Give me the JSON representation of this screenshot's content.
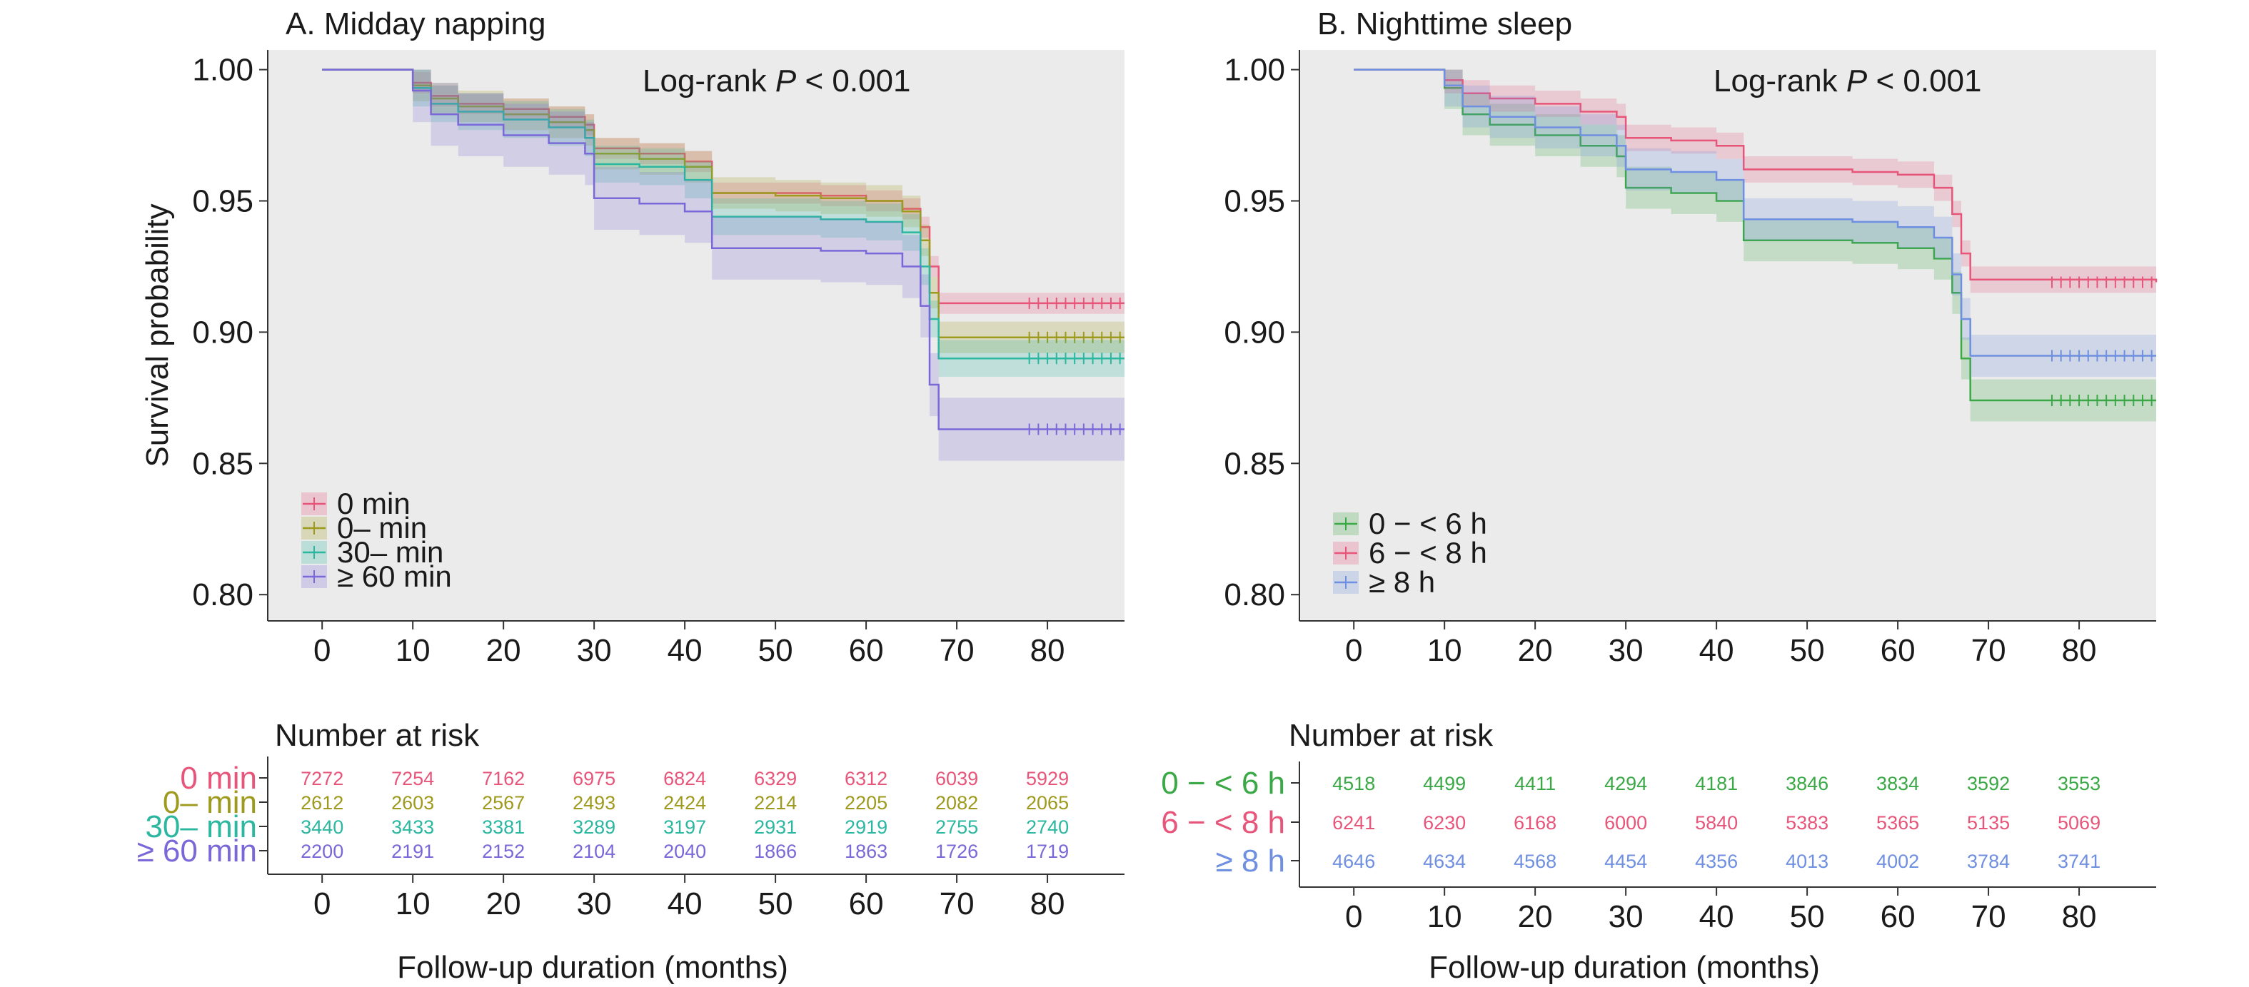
{
  "chart_data": [
    {
      "type": "line",
      "subtype": "kaplan-meier",
      "title": "A. Midday napping",
      "annotation": {
        "prefix": "Log-rank ",
        "italic": "P",
        "suffix": " < 0.001"
      },
      "ylabel": "Survival probability",
      "xlabel": "Follow-up duration (months)",
      "xlim": [
        -6,
        88.5
      ],
      "ylim": [
        0.79,
        1.0075
      ],
      "x_ticks": [
        0,
        10,
        20,
        30,
        40,
        50,
        60,
        70,
        80
      ],
      "y_ticks": [
        0.8,
        0.85,
        0.9,
        0.95,
        1.0
      ],
      "y_tick_labels": [
        "0.80",
        "0.85",
        "0.90",
        "0.95",
        "1.00"
      ],
      "x_tick_labels": [
        "0",
        "10",
        "20",
        "30",
        "40",
        "50",
        "60",
        "70",
        "80"
      ],
      "grid": false,
      "legend_position": "bottom-left",
      "risk_table_heading": "Number at risk",
      "series": [
        {
          "name": "0 min",
          "color": "#e8557a",
          "ci": 0.004,
          "points": [
            [
              0,
              1.0
            ],
            [
              6,
              1.0
            ],
            [
              10,
              0.995
            ],
            [
              12,
              0.99
            ],
            [
              15,
              0.987
            ],
            [
              20,
              0.985
            ],
            [
              25,
              0.982
            ],
            [
              29,
              0.979
            ],
            [
              30,
              0.97
            ],
            [
              35,
              0.968
            ],
            [
              40,
              0.965
            ],
            [
              43,
              0.953
            ],
            [
              50,
              0.953
            ],
            [
              55,
              0.952
            ],
            [
              60,
              0.95
            ],
            [
              64,
              0.947
            ],
            [
              66,
              0.94
            ],
            [
              67,
              0.925
            ],
            [
              68,
              0.911
            ],
            [
              88.5,
              0.911
            ]
          ],
          "censor": [
            78,
            79,
            80,
            81,
            82,
            83,
            84,
            85,
            86,
            87,
            88
          ]
        },
        {
          "name": "0– min",
          "color": "#9e9a1e",
          "ci": 0.006,
          "points": [
            [
              0,
              1.0
            ],
            [
              6,
              1.0
            ],
            [
              10,
              0.994
            ],
            [
              12,
              0.989
            ],
            [
              15,
              0.986
            ],
            [
              20,
              0.983
            ],
            [
              25,
              0.98
            ],
            [
              29,
              0.977
            ],
            [
              30,
              0.968
            ],
            [
              35,
              0.966
            ],
            [
              40,
              0.963
            ],
            [
              43,
              0.953
            ],
            [
              50,
              0.952
            ],
            [
              55,
              0.951
            ],
            [
              60,
              0.95
            ],
            [
              64,
              0.946
            ],
            [
              66,
              0.935
            ],
            [
              67,
              0.915
            ],
            [
              68,
              0.898
            ],
            [
              88.5,
              0.898
            ]
          ],
          "censor": [
            78,
            79,
            80,
            81,
            82,
            83,
            84,
            85,
            86,
            87,
            88
          ]
        },
        {
          "name": "30– min",
          "color": "#2bb7a0",
          "ci": 0.007,
          "points": [
            [
              0,
              1.0
            ],
            [
              6,
              1.0
            ],
            [
              10,
              0.993
            ],
            [
              12,
              0.987
            ],
            [
              15,
              0.984
            ],
            [
              20,
              0.981
            ],
            [
              25,
              0.978
            ],
            [
              29,
              0.974
            ],
            [
              30,
              0.964
            ],
            [
              35,
              0.963
            ],
            [
              40,
              0.958
            ],
            [
              43,
              0.944
            ],
            [
              50,
              0.944
            ],
            [
              55,
              0.943
            ],
            [
              60,
              0.942
            ],
            [
              64,
              0.938
            ],
            [
              66,
              0.925
            ],
            [
              67,
              0.905
            ],
            [
              68,
              0.89
            ],
            [
              88.5,
              0.89
            ]
          ],
          "censor": [
            78,
            79,
            80,
            81,
            82,
            83,
            84,
            85,
            86,
            87,
            88
          ]
        },
        {
          "name": "≥ 60 min",
          "color": "#7a68d8",
          "ci": 0.012,
          "points": [
            [
              0,
              1.0
            ],
            [
              6,
              1.0
            ],
            [
              10,
              0.992
            ],
            [
              12,
              0.983
            ],
            [
              15,
              0.979
            ],
            [
              20,
              0.975
            ],
            [
              25,
              0.972
            ],
            [
              29,
              0.968
            ],
            [
              30,
              0.951
            ],
            [
              35,
              0.949
            ],
            [
              40,
              0.946
            ],
            [
              43,
              0.932
            ],
            [
              50,
              0.932
            ],
            [
              55,
              0.931
            ],
            [
              60,
              0.93
            ],
            [
              64,
              0.925
            ],
            [
              66,
              0.91
            ],
            [
              67,
              0.88
            ],
            [
              68,
              0.863
            ],
            [
              88.5,
              0.863
            ]
          ],
          "censor": [
            78,
            79,
            80,
            81,
            82,
            83,
            84,
            85,
            86,
            87,
            88
          ]
        }
      ],
      "risk_table": {
        "times": [
          0,
          10,
          20,
          30,
          40,
          50,
          60,
          70,
          80
        ],
        "rows": [
          {
            "label": "0 min",
            "color": "#e8557a",
            "values": [
              "7272",
              "7254",
              "7162",
              "6975",
              "6824",
              "6329",
              "6312",
              "6039",
              "5929"
            ]
          },
          {
            "label": "0– min",
            "color": "#9e9a1e",
            "values": [
              "2612",
              "2603",
              "2567",
              "2493",
              "2424",
              "2214",
              "2205",
              "2082",
              "2065"
            ]
          },
          {
            "label": "30– min",
            "color": "#2bb7a0",
            "values": [
              "3440",
              "3433",
              "3381",
              "3289",
              "3197",
              "2931",
              "2919",
              "2755",
              "2740"
            ]
          },
          {
            "label": "≥ 60 min",
            "color": "#7a68d8",
            "values": [
              "2200",
              "2191",
              "2152",
              "2104",
              "2040",
              "1866",
              "1863",
              "1726",
              "1719"
            ]
          }
        ]
      }
    },
    {
      "type": "line",
      "subtype": "kaplan-meier",
      "title": "B. Nighttime sleep",
      "annotation": {
        "prefix": "Log-rank ",
        "italic": "P",
        "suffix": " < 0.001"
      },
      "ylabel": "",
      "xlabel": "Follow-up duration (months)",
      "xlim": [
        -6,
        88.5
      ],
      "ylim": [
        0.79,
        1.0075
      ],
      "x_ticks": [
        0,
        10,
        20,
        30,
        40,
        50,
        60,
        70,
        80
      ],
      "y_ticks": [
        0.8,
        0.85,
        0.9,
        0.95,
        1.0
      ],
      "y_tick_labels": [
        "0.80",
        "0.85",
        "0.90",
        "0.95",
        "1.00"
      ],
      "x_tick_labels": [
        "0",
        "10",
        "20",
        "30",
        "40",
        "50",
        "60",
        "70",
        "80"
      ],
      "grid": false,
      "legend_position": "bottom-left",
      "risk_table_heading": "Number at risk",
      "series": [
        {
          "name": "0 − < 6 h",
          "color": "#3aa845",
          "ci": 0.008,
          "points": [
            [
              0,
              1.0
            ],
            [
              6,
              1.0
            ],
            [
              10,
              0.993
            ],
            [
              12,
              0.983
            ],
            [
              15,
              0.979
            ],
            [
              20,
              0.975
            ],
            [
              25,
              0.971
            ],
            [
              29,
              0.967
            ],
            [
              30,
              0.955
            ],
            [
              35,
              0.953
            ],
            [
              40,
              0.95
            ],
            [
              43,
              0.935
            ],
            [
              50,
              0.935
            ],
            [
              55,
              0.934
            ],
            [
              60,
              0.932
            ],
            [
              64,
              0.928
            ],
            [
              66,
              0.915
            ],
            [
              67,
              0.89
            ],
            [
              68,
              0.874
            ],
            [
              88.5,
              0.874
            ]
          ],
          "censor": [
            77,
            78,
            79,
            80,
            81,
            82,
            83,
            84,
            85,
            86,
            87,
            88
          ]
        },
        {
          "name": "6 − < 8 h",
          "color": "#e8557a",
          "ci": 0.005,
          "points": [
            [
              0,
              1.0
            ],
            [
              6,
              1.0
            ],
            [
              10,
              0.996
            ],
            [
              12,
              0.991
            ],
            [
              15,
              0.989
            ],
            [
              20,
              0.987
            ],
            [
              25,
              0.984
            ],
            [
              29,
              0.982
            ],
            [
              30,
              0.974
            ],
            [
              35,
              0.973
            ],
            [
              40,
              0.971
            ],
            [
              43,
              0.962
            ],
            [
              50,
              0.962
            ],
            [
              55,
              0.961
            ],
            [
              60,
              0.96
            ],
            [
              64,
              0.955
            ],
            [
              66,
              0.945
            ],
            [
              67,
              0.93
            ],
            [
              68,
              0.92
            ],
            [
              88.5,
              0.919
            ]
          ],
          "censor": [
            77,
            78,
            79,
            80,
            81,
            82,
            83,
            84,
            85,
            86,
            87,
            88
          ]
        },
        {
          "name": "≥ 8 h",
          "color": "#6f8fe0",
          "ci": 0.008,
          "points": [
            [
              0,
              1.0
            ],
            [
              6,
              1.0
            ],
            [
              10,
              0.994
            ],
            [
              12,
              0.986
            ],
            [
              15,
              0.982
            ],
            [
              20,
              0.978
            ],
            [
              25,
              0.975
            ],
            [
              29,
              0.971
            ],
            [
              30,
              0.962
            ],
            [
              35,
              0.961
            ],
            [
              40,
              0.958
            ],
            [
              43,
              0.943
            ],
            [
              50,
              0.943
            ],
            [
              55,
              0.942
            ],
            [
              60,
              0.94
            ],
            [
              64,
              0.936
            ],
            [
              66,
              0.922
            ],
            [
              67,
              0.905
            ],
            [
              68,
              0.891
            ],
            [
              88.5,
              0.891
            ]
          ],
          "censor": [
            77,
            78,
            79,
            80,
            81,
            82,
            83,
            84,
            85,
            86,
            87,
            88
          ]
        }
      ],
      "risk_table": {
        "times": [
          0,
          10,
          20,
          30,
          40,
          50,
          60,
          70,
          80
        ],
        "rows": [
          {
            "label": "0 − < 6 h",
            "color": "#3aa845",
            "values": [
              "4518",
              "4499",
              "4411",
              "4294",
              "4181",
              "3846",
              "3834",
              "3592",
              "3553"
            ]
          },
          {
            "label": "6 − < 8 h",
            "color": "#e8557a",
            "values": [
              "6241",
              "6230",
              "6168",
              "6000",
              "5840",
              "5383",
              "5365",
              "5135",
              "5069"
            ]
          },
          {
            "label": "≥ 8 h",
            "color": "#6f8fe0",
            "values": [
              "4646",
              "4634",
              "4568",
              "4454",
              "4356",
              "4013",
              "4002",
              "3784",
              "3741"
            ]
          }
        ]
      }
    }
  ]
}
